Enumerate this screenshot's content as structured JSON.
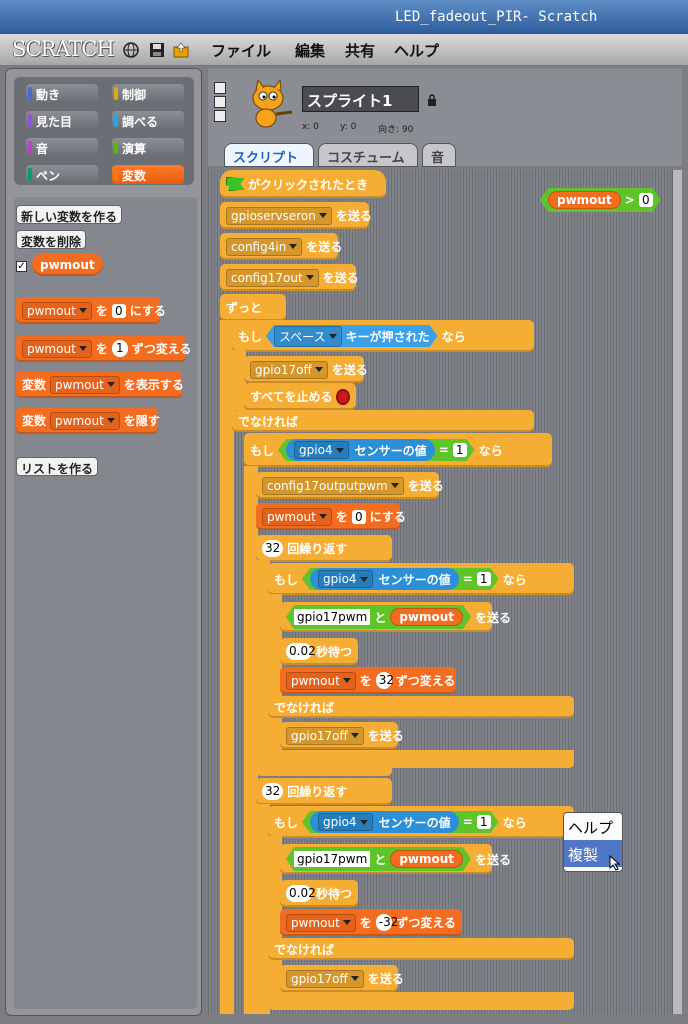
{
  "window": {
    "title": "LED_fadeout_PIR- Scratch"
  },
  "menu": {
    "logo": "SCRATCH",
    "file": "ファイル",
    "edit": "編集",
    "share": "共有",
    "help": "ヘルプ"
  },
  "categories": [
    "動き",
    "制御",
    "見た目",
    "調べる",
    "音",
    "演算",
    "ペン",
    "変数"
  ],
  "palette": {
    "new_var": "新しい変数を作る",
    "del_var": "変数を削除",
    "var_name": "pwmout",
    "set": {
      "var": "pwmout",
      "wo": "を",
      "val": "0",
      "tail": "にする"
    },
    "change": {
      "var": "pwmout",
      "wo": "を",
      "val": "1",
      "tail": "ずつ変える"
    },
    "show": {
      "head": "変数",
      "var": "pwmout",
      "tail": "を表示する"
    },
    "hide": {
      "head": "変数",
      "var": "pwmout",
      "tail": "を隠す"
    },
    "new_list": "リストを作る"
  },
  "sprite": {
    "name": "スプライト1",
    "x_label": "x: 0",
    "y_label": "y: 0",
    "dir_label": "向き: 90"
  },
  "tabs": [
    "スクリプト",
    "コスチューム",
    "音"
  ],
  "script": {
    "hat": "がクリックされたとき",
    "send": "を送る",
    "bc1": "gpioservseron",
    "bc2": "config4in",
    "bc3": "config17out",
    "forever": "ずっと",
    "if": "もし",
    "then": "なら",
    "else": "でなければ",
    "key": "スペース",
    "key_pressed": "キーが押された",
    "bc4": "gpio17off",
    "stop_all": "すべてを止める",
    "sensor": "gpio4",
    "sensor_val": "センサーの値",
    "eq": "=",
    "one": "1",
    "bc5": "config17outputpwm",
    "var": "pwmout",
    "wo": "を",
    "zero": "0",
    "set_tail": "にする",
    "repeat_n": "32",
    "repeat": "回繰り返す",
    "pwm_text": "gpio17pwm",
    "and": "と",
    "wait_n": "0.02",
    "wait": "秒待つ",
    "chg_pos": "32",
    "chg_neg": "-32",
    "chg_tail": "ずつ変える",
    "off": "gpio17off",
    "cmp_op": ">",
    "cmp_val": "0"
  },
  "context_menu": [
    "ヘルプ",
    "複製"
  ]
}
